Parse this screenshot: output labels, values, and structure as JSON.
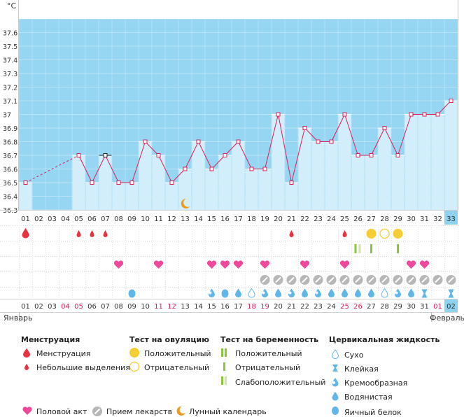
{
  "chart_data": {
    "type": "line",
    "unit": "°C",
    "ylim": [
      36.3,
      37.7
    ],
    "yticks": [
      "37.6",
      "37.5",
      "37.4",
      "37.3",
      "37.2",
      "37.1",
      "37",
      "36.9",
      "36.8",
      "36.7",
      "36.6",
      "36.5",
      "36.4",
      "36.3"
    ],
    "cycle_days": [
      "01",
      "02",
      "03",
      "04",
      "05",
      "06",
      "07",
      "08",
      "09",
      "10",
      "11",
      "12",
      "13",
      "14",
      "15",
      "16",
      "17",
      "18",
      "19",
      "20",
      "21",
      "22",
      "23",
      "24",
      "25",
      "26",
      "27",
      "28",
      "29",
      "30",
      "31",
      "32",
      "33"
    ],
    "temperatures": [
      36.5,
      null,
      null,
      null,
      36.7,
      36.5,
      36.7,
      36.5,
      36.5,
      36.8,
      36.7,
      36.5,
      36.6,
      36.8,
      36.6,
      36.7,
      36.8,
      36.6,
      36.6,
      37.0,
      36.5,
      36.9,
      36.8,
      36.8,
      37.0,
      36.7,
      36.7,
      36.9,
      36.7,
      37.0,
      37.0,
      37.0,
      37.1
    ],
    "current_day": "33",
    "menstruation": {
      "1": "heavy",
      "5": "light",
      "6": "light",
      "7": "light",
      "21": "light",
      "25": "light"
    },
    "ovulation_test": {
      "27": "positive",
      "28": "negative",
      "29": "positive"
    },
    "pregnancy_test": {
      "26": "positive,weak",
      "27": "negative",
      "29": "negative"
    },
    "intercourse": [
      8,
      11,
      15,
      16,
      17,
      19,
      22,
      25,
      30,
      31
    ],
    "medication": [
      19,
      20,
      21,
      22,
      23,
      24,
      25,
      26,
      27,
      28,
      29,
      30,
      31,
      32,
      33
    ],
    "moon_day": 13,
    "cervical": {
      "9": "egg-white",
      "15": "creamy",
      "16": "egg-white",
      "17": "watery",
      "18": "dry",
      "19": "creamy",
      "20": "watery",
      "21": "creamy",
      "22": "watery",
      "23": "creamy",
      "24": "watery",
      "25": "watery",
      "26": "watery",
      "27": "watery",
      "28": "dry",
      "29": "creamy",
      "30": "watery",
      "31": "sticky",
      "33": "sticky"
    },
    "dates": [
      "01",
      "02",
      "03",
      "04",
      "05",
      "06",
      "07",
      "08",
      "09",
      "10",
      "11",
      "12",
      "13",
      "14",
      "15",
      "16",
      "17",
      "18",
      "19",
      "20",
      "21",
      "22",
      "23",
      "24",
      "25",
      "26",
      "27",
      "28",
      "29",
      "30",
      "31",
      "01",
      "02"
    ],
    "weekend_dates": [
      3,
      4,
      10,
      11,
      17,
      18,
      24,
      25,
      31
    ],
    "month_labels": {
      "0": "Январь",
      "31": "Февраль"
    },
    "colors": {
      "phase_fill": "#96d6f2",
      "bar_fill": "#d2eefb",
      "line": "#dd1f5a",
      "drop_red": "#e8323e",
      "heart": "#f0489a",
      "ovulation": "#f6cd34",
      "pregnancy": "#8cc63a",
      "pill": "#b7b7b7",
      "moon": "#f09a1d",
      "water": "#5fb6e8",
      "highlight": "#8fd2ee"
    }
  },
  "legend": {
    "menstruation": {
      "title": "Менструация",
      "items": [
        "Менструация",
        "Небольшие выделения"
      ]
    },
    "ovulation": {
      "title": "Тест на овуляцию",
      "items": [
        "Положительный",
        "Отрицательный"
      ]
    },
    "pregnancy": {
      "title": "Тест на беременность",
      "items": [
        "Положительный",
        "Отрицательный",
        "Слабоположительный"
      ]
    },
    "cervical": {
      "title": "Цервикальная жидкость",
      "items": [
        "Сухо",
        "Клейкая",
        "Кремообразная",
        "Водянистая",
        "Яичный белок"
      ]
    },
    "bottom": [
      "Половой акт",
      "Прием лекарств",
      "Лунный календарь"
    ]
  }
}
